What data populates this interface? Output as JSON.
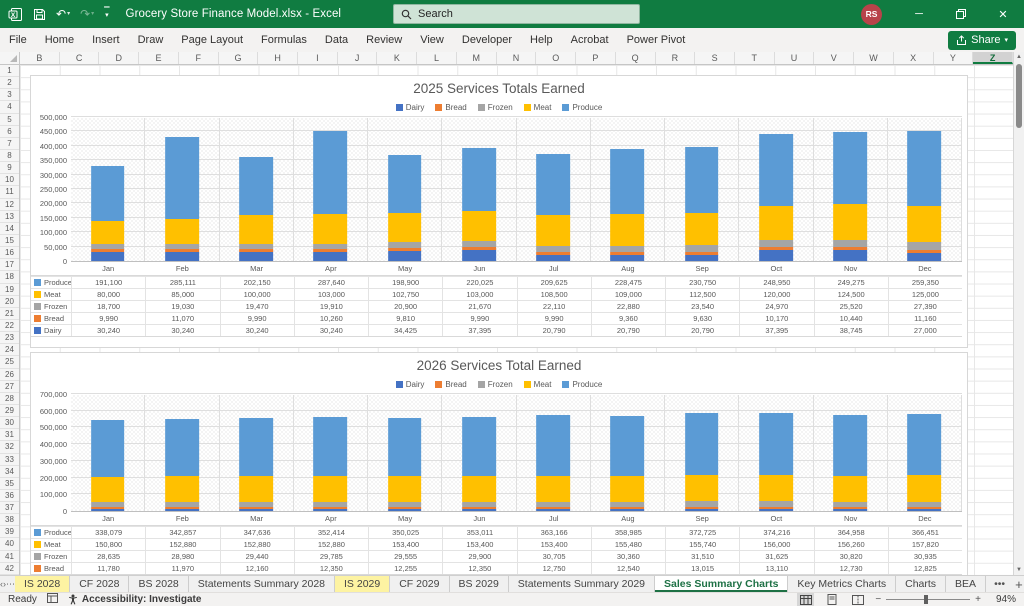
{
  "title_bar": {
    "title": "Grocery Store Finance Model.xlsx  -  Excel",
    "search_placeholder": "Search",
    "avatar_initials": "RS"
  },
  "ribbon": {
    "tabs": [
      "File",
      "Home",
      "Insert",
      "Draw",
      "Page Layout",
      "Formulas",
      "Data",
      "Review",
      "View",
      "Developer",
      "Help",
      "Acrobat",
      "Power Pivot"
    ],
    "share_label": "Share"
  },
  "grid": {
    "columns": [
      "B",
      "C",
      "D",
      "E",
      "F",
      "G",
      "H",
      "I",
      "J",
      "K",
      "L",
      "M",
      "N",
      "O",
      "P",
      "Q",
      "R",
      "S",
      "T",
      "U",
      "V",
      "W",
      "X",
      "Y",
      "Z"
    ],
    "selected_column": "Z",
    "row_count": 42
  },
  "chart_data": [
    {
      "type": "bar",
      "stacked": true,
      "title": "2025 Services Totals Earned",
      "categories": [
        "Jan",
        "Feb",
        "Mar",
        "Apr",
        "May",
        "Jun",
        "Jul",
        "Aug",
        "Sep",
        "Oct",
        "Nov",
        "Dec"
      ],
      "ylim": [
        0,
        500000
      ],
      "ytick": 50000,
      "legend_position": "top",
      "grid": true,
      "legend_order": [
        "Dairy",
        "Bread",
        "Frozen",
        "Meat",
        "Produce"
      ],
      "table_rows": [
        "Produce",
        "Meat",
        "Frozen",
        "Bread",
        "Dairy"
      ],
      "series": [
        {
          "name": "Dairy",
          "color": "#4472C4",
          "values": [
            30240,
            30240,
            30240,
            30240,
            34425,
            37395,
            20790,
            20790,
            20790,
            37395,
            38745,
            27000
          ]
        },
        {
          "name": "Bread",
          "color": "#ED7D31",
          "values": [
            9990,
            11070,
            9990,
            10260,
            9810,
            9990,
            9990,
            9360,
            9630,
            10170,
            10440,
            11160
          ]
        },
        {
          "name": "Frozen",
          "color": "#A5A5A5",
          "values": [
            18700,
            19030,
            19470,
            19910,
            20900,
            21670,
            22110,
            22880,
            23540,
            24970,
            25520,
            27390
          ]
        },
        {
          "name": "Meat",
          "color": "#FFC000",
          "values": [
            80000,
            85000,
            100000,
            103000,
            102750,
            103000,
            108500,
            109000,
            112500,
            120000,
            124500,
            125000
          ]
        },
        {
          "name": "Produce",
          "color": "#5B9BD5",
          "values": [
            191100,
            285111,
            202150,
            287640,
            198900,
            220025,
            209625,
            228475,
            230750,
            248950,
            249275,
            259350
          ]
        }
      ]
    },
    {
      "type": "bar",
      "stacked": true,
      "title": "2026 Services Total Earned",
      "categories": [
        "Jan",
        "Feb",
        "Mar",
        "Apr",
        "May",
        "Jun",
        "Jul",
        "Aug",
        "Sep",
        "Oct",
        "Nov",
        "Dec"
      ],
      "ylim": [
        0,
        700000
      ],
      "ytick": 100000,
      "legend_position": "top",
      "grid": true,
      "legend_order": [
        "Dairy",
        "Bread",
        "Frozen",
        "Meat",
        "Produce"
      ],
      "table_rows": [
        "Produce",
        "Meat",
        "Frozen",
        "Bread"
      ],
      "series": [
        {
          "name": "Dairy",
          "color": "#4472C4",
          "estimated": true,
          "values": [
            12750,
            12750,
            12750,
            12750,
            12750,
            12750,
            12750,
            12750,
            12750,
            12750,
            12750,
            12750
          ]
        },
        {
          "name": "Bread",
          "color": "#ED7D31",
          "values": [
            11780,
            11970,
            12160,
            12350,
            12255,
            12350,
            12750,
            12540,
            13015,
            13110,
            12730,
            12825
          ]
        },
        {
          "name": "Frozen",
          "color": "#A5A5A5",
          "values": [
            28635,
            28980,
            29440,
            29785,
            29555,
            29900,
            30705,
            30360,
            31510,
            31625,
            30820,
            30935
          ]
        },
        {
          "name": "Meat",
          "color": "#FFC000",
          "values": [
            150800,
            152880,
            152880,
            152880,
            153400,
            153400,
            153400,
            155480,
            155740,
            156000,
            156260,
            157820
          ]
        },
        {
          "name": "Produce",
          "color": "#5B9BD5",
          "values": [
            338079,
            342857,
            347636,
            352414,
            350025,
            353011,
            363166,
            358985,
            372725,
            374216,
            364958,
            366451
          ]
        }
      ]
    }
  ],
  "sheet_tabs": {
    "tabs": [
      {
        "label": "IS 2028",
        "highlight": true
      },
      {
        "label": "CF 2028"
      },
      {
        "label": "BS 2028"
      },
      {
        "label": "Statements Summary 2028"
      },
      {
        "label": "IS 2029",
        "highlight": true
      },
      {
        "label": "CF 2029"
      },
      {
        "label": "BS 2029"
      },
      {
        "label": "Statements Summary 2029"
      },
      {
        "label": "Sales Summary Charts",
        "active": true
      },
      {
        "label": "Key Metrics Charts"
      },
      {
        "label": "Charts"
      },
      {
        "label": "BEA"
      }
    ],
    "more_label": "•••",
    "new_sheet_label": "+"
  },
  "status_bar": {
    "ready_label": "Ready",
    "accessibility_label": "Accessibility: Investigate",
    "zoom_level": "94%"
  }
}
